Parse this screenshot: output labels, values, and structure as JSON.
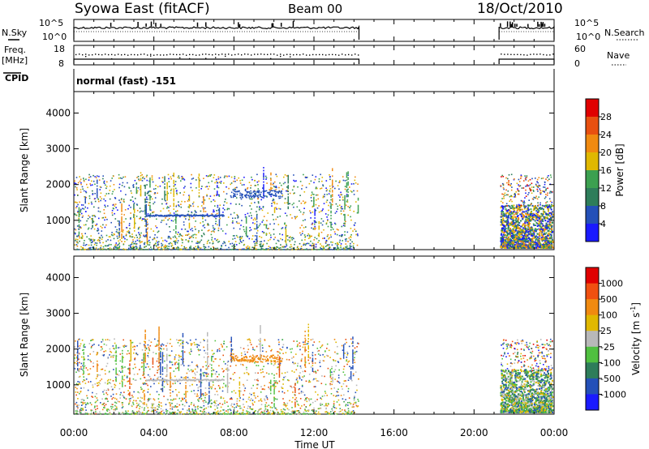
{
  "header": {
    "station": "Syowa East (fitACF)",
    "beam": "Beam 00",
    "date": "18/Oct/2010"
  },
  "side_labels": {
    "nsky": "N.Sky",
    "freq": "Freq.",
    "mhz": "[MHz]",
    "cpid": "CPID",
    "nsearch": "N.Search",
    "nave": "Nave"
  },
  "cpid_text": "normal (fast) -151",
  "colors": {
    "power": [
      "#1a1aff",
      "#2450b8",
      "#2e7d5a",
      "#3ca050",
      "#e0b800",
      "#f08a10",
      "#e85010",
      "#e00000"
    ],
    "velocity": [
      "#e00000",
      "#f05010",
      "#f08a10",
      "#e0b800",
      "#b8b8b8",
      "#50c040",
      "#2e7d5a",
      "#2450b8",
      "#1a1aff"
    ]
  },
  "chart_data": [
    {
      "type": "line",
      "name": "nsky-nsearch",
      "left_ticks": [
        "10^5",
        "10^0"
      ],
      "right_ticks": [
        "10^5",
        "10^0"
      ],
      "data_windows_ut": [
        [
          "00:00",
          "14:15"
        ],
        [
          "21:15",
          "24:00"
        ]
      ]
    },
    {
      "type": "scatter",
      "name": "freq-nave",
      "left_ticks": [
        "18",
        "8"
      ],
      "right_ticks": [
        "60",
        "0"
      ],
      "data_windows_ut": [
        [
          "00:00",
          "14:15"
        ],
        [
          "21:15",
          "24:00"
        ]
      ]
    },
    {
      "type": "heatmap",
      "name": "power",
      "ylabel": "Slant Range [km]",
      "yticks": [
        "4000",
        "3000",
        "2000",
        "1000"
      ],
      "ylim": [
        180,
        4600
      ],
      "colorbar_label": "Power [dB]",
      "colorbar_ticks": [
        "28",
        "24",
        "20",
        "16",
        "12",
        "8",
        "4"
      ]
    },
    {
      "type": "heatmap",
      "name": "velocity",
      "ylabel": "Slant Range [km]",
      "yticks": [
        "4000",
        "3000",
        "2000",
        "1000"
      ],
      "ylim": [
        180,
        4600
      ],
      "colorbar_label": "Velocity [m s",
      "colorbar_label_sup": "-1",
      "colorbar_label_end": "]",
      "colorbar_ticks": [
        "1000",
        "500",
        "100",
        "25",
        "-25",
        "-100",
        "-500",
        "-1000"
      ]
    }
  ],
  "xaxis": {
    "ticks": [
      "00:00",
      "04:00",
      "08:00",
      "12:00",
      "16:00",
      "20:00",
      "00:00"
    ],
    "xlabel": "Time UT"
  }
}
